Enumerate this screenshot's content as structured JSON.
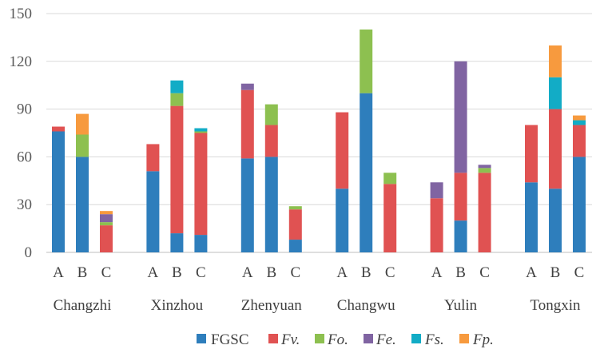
{
  "chart_data": {
    "type": "bar",
    "stacked": true,
    "title": "",
    "xlabel": "",
    "ylabel": "",
    "ylim": [
      0,
      150
    ],
    "yticks": [
      0,
      30,
      60,
      90,
      120,
      150
    ],
    "grid": true,
    "legend_position": "bottom",
    "groups": [
      "Changzhi",
      "Xinzhou",
      "Zhenyuan",
      "Changwu",
      "Yulin",
      "Tongxin"
    ],
    "subcategories": [
      "A",
      "B",
      "C"
    ],
    "series": [
      {
        "name": "FGSC",
        "italic": false,
        "color": "#2e7ebc",
        "values": [
          [
            76,
            60,
            0
          ],
          [
            51,
            12,
            11
          ],
          [
            59,
            60,
            8
          ],
          [
            40,
            100,
            0
          ],
          [
            0,
            20,
            0
          ],
          [
            44,
            40,
            60
          ]
        ]
      },
      {
        "name": "Fv.",
        "italic": true,
        "color": "#e05252",
        "values": [
          [
            3,
            0,
            17
          ],
          [
            17,
            80,
            64
          ],
          [
            43,
            20,
            19
          ],
          [
            48,
            0,
            43
          ],
          [
            34,
            30,
            50
          ],
          [
            36,
            50,
            20
          ]
        ]
      },
      {
        "name": "Fo.",
        "italic": true,
        "color": "#8dc050",
        "values": [
          [
            0,
            14,
            2
          ],
          [
            0,
            8,
            1
          ],
          [
            0,
            13,
            2
          ],
          [
            0,
            40,
            7
          ],
          [
            0,
            0,
            3
          ],
          [
            0,
            0,
            0
          ]
        ]
      },
      {
        "name": "Fe.",
        "italic": true,
        "color": "#8064a2",
        "values": [
          [
            0,
            0,
            5
          ],
          [
            0,
            0,
            0
          ],
          [
            4,
            0,
            0
          ],
          [
            0,
            0,
            0
          ],
          [
            10,
            70,
            2
          ],
          [
            0,
            0,
            0
          ]
        ]
      },
      {
        "name": "Fs.",
        "italic": true,
        "color": "#12acc6",
        "values": [
          [
            0,
            0,
            0
          ],
          [
            0,
            8,
            2
          ],
          [
            0,
            0,
            0
          ],
          [
            0,
            0,
            0
          ],
          [
            0,
            0,
            0
          ],
          [
            0,
            20,
            3
          ]
        ]
      },
      {
        "name": "Fp.",
        "italic": true,
        "color": "#f79a3e",
        "values": [
          [
            0,
            13,
            2
          ],
          [
            0,
            0,
            0
          ],
          [
            0,
            0,
            0
          ],
          [
            0,
            0,
            0
          ],
          [
            0,
            0,
            0
          ],
          [
            0,
            20,
            3
          ]
        ]
      }
    ]
  }
}
